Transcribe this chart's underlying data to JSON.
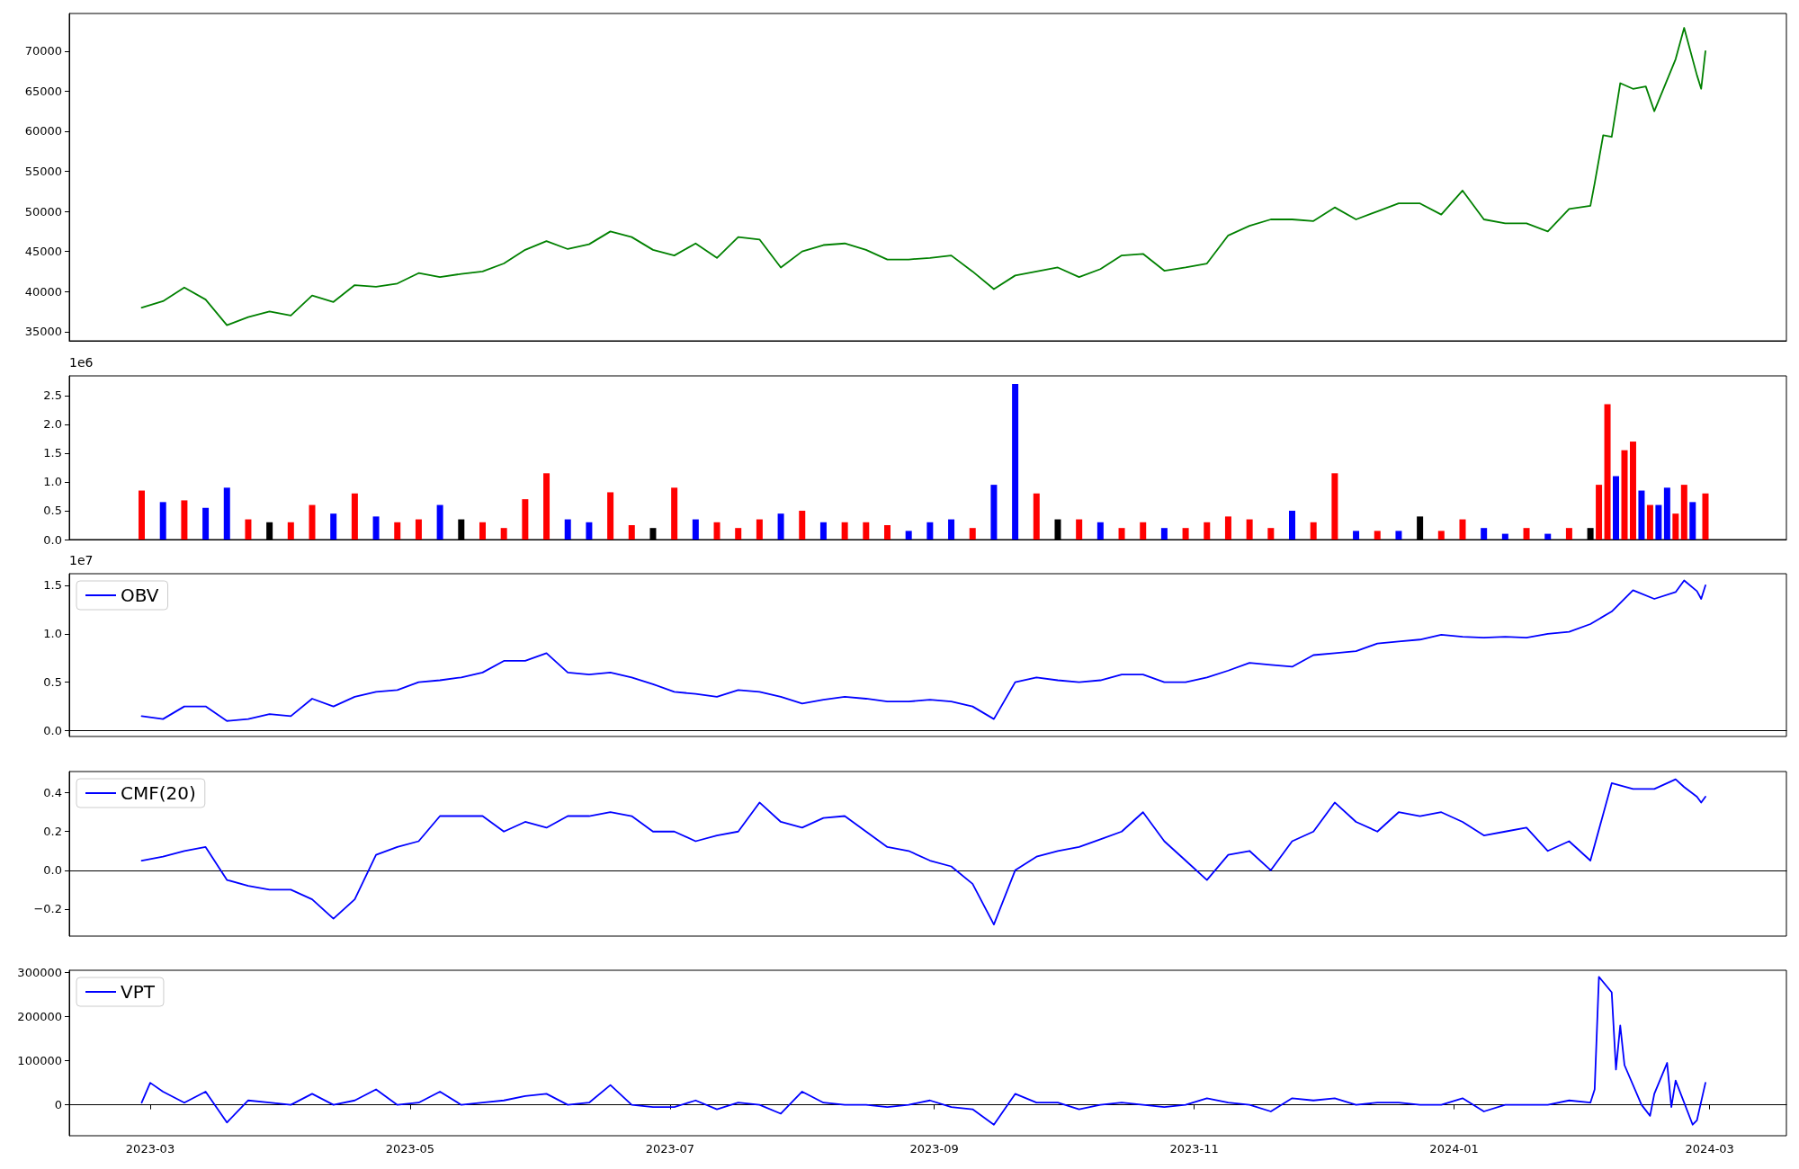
{
  "chart_data": [
    {
      "type": "line",
      "tick_labels": "y",
      "xlim": [
        "2023-02-10",
        "2024-03-19"
      ],
      "ylim": [
        33850,
        74700
      ],
      "yticks": [
        35000,
        40000,
        45000,
        50000,
        55000,
        60000,
        65000,
        70000
      ],
      "x": [
        "2023-02-27",
        "2023-03-04",
        "2023-03-09",
        "2023-03-14",
        "2023-03-19",
        "2023-03-24",
        "2023-03-29",
        "2023-04-03",
        "2023-04-08",
        "2023-04-13",
        "2023-04-18",
        "2023-04-23",
        "2023-04-28",
        "2023-05-03",
        "2023-05-08",
        "2023-05-13",
        "2023-05-18",
        "2023-05-23",
        "2023-05-28",
        "2023-06-02",
        "2023-06-07",
        "2023-06-12",
        "2023-06-17",
        "2023-06-22",
        "2023-06-27",
        "2023-07-02",
        "2023-07-07",
        "2023-07-12",
        "2023-07-17",
        "2023-07-22",
        "2023-07-27",
        "2023-08-01",
        "2023-08-06",
        "2023-08-11",
        "2023-08-16",
        "2023-08-21",
        "2023-08-26",
        "2023-08-31",
        "2023-09-05",
        "2023-09-10",
        "2023-09-15",
        "2023-09-20",
        "2023-09-25",
        "2023-09-30",
        "2023-10-05",
        "2023-10-10",
        "2023-10-15",
        "2023-10-20",
        "2023-10-25",
        "2023-10-30",
        "2023-11-04",
        "2023-11-09",
        "2023-11-14",
        "2023-11-19",
        "2023-11-24",
        "2023-11-29",
        "2023-12-04",
        "2023-12-09",
        "2023-12-14",
        "2023-12-19",
        "2023-12-24",
        "2023-12-29",
        "2024-01-03",
        "2024-01-08",
        "2024-01-13",
        "2024-01-18",
        "2024-01-23",
        "2024-01-28",
        "2024-02-02",
        "2024-02-03",
        "2024-02-05",
        "2024-02-07",
        "2024-02-09",
        "2024-02-12",
        "2024-02-15",
        "2024-02-17",
        "2024-02-22",
        "2024-02-24",
        "2024-02-27",
        "2024-02-28",
        "2024-02-29"
      ],
      "series": [
        {
          "color": "#008000",
          "values": [
            38000,
            38800,
            40500,
            39000,
            35800,
            36800,
            37500,
            37000,
            39500,
            38700,
            40800,
            40600,
            41000,
            42300,
            41800,
            42200,
            42500,
            43500,
            45200,
            46300,
            45300,
            45900,
            47500,
            46800,
            45200,
            44500,
            46000,
            44200,
            46800,
            46500,
            43000,
            45000,
            45800,
            46000,
            45200,
            44000,
            44000,
            44200,
            44500,
            42500,
            40300,
            42000,
            42500,
            43000,
            41800,
            42800,
            44500,
            44700,
            42600,
            43000,
            43500,
            47000,
            48200,
            49000,
            49000,
            48800,
            50500,
            49000,
            50000,
            51000,
            51000,
            49600,
            52600,
            49000,
            48500,
            48500,
            47500,
            50300,
            50700,
            53500,
            59500,
            59300,
            66000,
            65300,
            65600,
            62500,
            69000,
            72900,
            67000,
            65300,
            70000
          ]
        }
      ]
    },
    {
      "type": "bar",
      "tick_labels": "y",
      "annotations": [
        "1e6"
      ],
      "xlim": [
        "2023-02-10",
        "2024-03-19"
      ],
      "ylim": [
        0,
        2.84
      ],
      "yticks": [
        {
          "value": 0,
          "label": "0.0"
        },
        {
          "value": 0.5,
          "label": "0.5"
        },
        {
          "value": 1,
          "label": "1.0"
        },
        {
          "value": 1.5,
          "label": "1.5"
        },
        {
          "value": 2,
          "label": "2.0"
        },
        {
          "value": 2.5,
          "label": "2.5"
        }
      ],
      "x": [
        "2023-02-27",
        "2023-03-04",
        "2023-03-09",
        "2023-03-14",
        "2023-03-19",
        "2023-03-24",
        "2023-03-29",
        "2023-04-03",
        "2023-04-08",
        "2023-04-13",
        "2023-04-18",
        "2023-04-23",
        "2023-04-28",
        "2023-05-03",
        "2023-05-08",
        "2023-05-13",
        "2023-05-18",
        "2023-05-23",
        "2023-05-28",
        "2023-06-02",
        "2023-06-07",
        "2023-06-12",
        "2023-06-17",
        "2023-06-22",
        "2023-06-27",
        "2023-07-02",
        "2023-07-07",
        "2023-07-12",
        "2023-07-17",
        "2023-07-22",
        "2023-07-27",
        "2023-08-01",
        "2023-08-06",
        "2023-08-11",
        "2023-08-16",
        "2023-08-21",
        "2023-08-26",
        "2023-08-31",
        "2023-09-05",
        "2023-09-10",
        "2023-09-15",
        "2023-09-20",
        "2023-09-25",
        "2023-09-30",
        "2023-10-05",
        "2023-10-10",
        "2023-10-15",
        "2023-10-20",
        "2023-10-25",
        "2023-10-30",
        "2023-11-04",
        "2023-11-09",
        "2023-11-14",
        "2023-11-19",
        "2023-11-24",
        "2023-11-29",
        "2023-12-04",
        "2023-12-09",
        "2023-12-14",
        "2023-12-19",
        "2023-12-24",
        "2023-12-29",
        "2024-01-03",
        "2024-01-08",
        "2024-01-13",
        "2024-01-18",
        "2024-01-23",
        "2024-01-28",
        "2024-02-02",
        "2024-02-04",
        "2024-02-06",
        "2024-02-08",
        "2024-02-10",
        "2024-02-12",
        "2024-02-14",
        "2024-02-16",
        "2024-02-18",
        "2024-02-20",
        "2024-02-22",
        "2024-02-24",
        "2024-02-26",
        "2024-02-29"
      ],
      "values": [
        0.85,
        0.65,
        0.68,
        0.55,
        0.9,
        0.35,
        0.3,
        0.3,
        0.6,
        0.45,
        0.8,
        0.4,
        0.3,
        0.35,
        0.6,
        0.35,
        0.3,
        0.2,
        0.7,
        1.15,
        0.35,
        0.3,
        0.82,
        0.25,
        0.2,
        0.9,
        0.35,
        0.3,
        0.2,
        0.35,
        0.45,
        0.5,
        0.3,
        0.3,
        0.3,
        0.25,
        0.15,
        0.3,
        0.35,
        0.2,
        0.95,
        2.7,
        0.8,
        0.35,
        0.35,
        0.3,
        0.2,
        0.3,
        0.2,
        0.2,
        0.3,
        0.4,
        0.35,
        0.2,
        0.5,
        0.3,
        1.15,
        0.15,
        0.15,
        0.15,
        0.4,
        0.15,
        0.35,
        0.2,
        0.1,
        0.2,
        0.1,
        0.2,
        0.2,
        0.95,
        2.35,
        1.1,
        1.55,
        1.7,
        0.85,
        0.6,
        0.6,
        0.9,
        0.45,
        0.95,
        0.65,
        0.8
      ],
      "colors": [
        "#ff0000",
        "#0000ff",
        "#ff0000",
        "#0000ff",
        "#0000ff",
        "#ff0000",
        "#000000",
        "#ff0000",
        "#ff0000",
        "#0000ff",
        "#ff0000",
        "#0000ff",
        "#ff0000",
        "#ff0000",
        "#0000ff",
        "#000000",
        "#ff0000",
        "#ff0000",
        "#ff0000",
        "#ff0000",
        "#0000ff",
        "#0000ff",
        "#ff0000",
        "#ff0000",
        "#000000",
        "#ff0000",
        "#0000ff",
        "#ff0000",
        "#ff0000",
        "#ff0000",
        "#0000ff",
        "#ff0000",
        "#0000ff",
        "#ff0000",
        "#ff0000",
        "#ff0000",
        "#0000ff",
        "#0000ff",
        "#0000ff",
        "#ff0000",
        "#0000ff",
        "#0000ff",
        "#ff0000",
        "#000000",
        "#ff0000",
        "#0000ff",
        "#ff0000",
        "#ff0000",
        "#0000ff",
        "#ff0000",
        "#ff0000",
        "#ff0000",
        "#ff0000",
        "#ff0000",
        "#0000ff",
        "#ff0000",
        "#ff0000",
        "#0000ff",
        "#ff0000",
        "#0000ff",
        "#000000",
        "#ff0000",
        "#ff0000",
        "#0000ff",
        "#0000ff",
        "#ff0000",
        "#0000ff",
        "#ff0000",
        "#000000",
        "#ff0000",
        "#ff0000",
        "#0000ff",
        "#ff0000",
        "#ff0000",
        "#0000ff",
        "#ff0000",
        "#0000ff",
        "#0000ff",
        "#ff0000",
        "#ff0000",
        "#0000ff",
        "#ff0000"
      ]
    },
    {
      "type": "line",
      "tick_labels": "y",
      "legend": "top left",
      "annotations": [
        "1e7"
      ],
      "xlim": [
        "2023-02-10",
        "2024-03-19"
      ],
      "ylim": [
        -0.06,
        1.62
      ],
      "yticks": [
        {
          "value": 0,
          "label": "0.0"
        },
        {
          "value": 0.5,
          "label": "0.5"
        },
        {
          "value": 1,
          "label": "1.0"
        },
        {
          "value": 1.5,
          "label": "1.5"
        }
      ],
      "x": [
        "2023-02-27",
        "2023-03-04",
        "2023-03-09",
        "2023-03-14",
        "2023-03-19",
        "2023-03-24",
        "2023-03-29",
        "2023-04-03",
        "2023-04-08",
        "2023-04-13",
        "2023-04-18",
        "2023-04-23",
        "2023-04-28",
        "2023-05-03",
        "2023-05-08",
        "2023-05-13",
        "2023-05-18",
        "2023-05-23",
        "2023-05-28",
        "2023-06-02",
        "2023-06-07",
        "2023-06-12",
        "2023-06-17",
        "2023-06-22",
        "2023-06-27",
        "2023-07-02",
        "2023-07-07",
        "2023-07-12",
        "2023-07-17",
        "2023-07-22",
        "2023-07-27",
        "2023-08-01",
        "2023-08-06",
        "2023-08-11",
        "2023-08-16",
        "2023-08-21",
        "2023-08-26",
        "2023-08-31",
        "2023-09-05",
        "2023-09-10",
        "2023-09-15",
        "2023-09-20",
        "2023-09-25",
        "2023-09-30",
        "2023-10-05",
        "2023-10-10",
        "2023-10-15",
        "2023-10-20",
        "2023-10-25",
        "2023-10-30",
        "2023-11-04",
        "2023-11-09",
        "2023-11-14",
        "2023-11-19",
        "2023-11-24",
        "2023-11-29",
        "2023-12-04",
        "2023-12-09",
        "2023-12-14",
        "2023-12-19",
        "2023-12-24",
        "2023-12-29",
        "2024-01-03",
        "2024-01-08",
        "2024-01-13",
        "2024-01-18",
        "2024-01-23",
        "2024-01-28",
        "2024-02-02",
        "2024-02-07",
        "2024-02-12",
        "2024-02-17",
        "2024-02-22",
        "2024-02-24",
        "2024-02-27",
        "2024-02-28",
        "2024-02-29"
      ],
      "series": [
        {
          "name": "OBV",
          "color": "#0000ff",
          "values": [
            0.15,
            0.12,
            0.25,
            0.25,
            0.1,
            0.12,
            0.17,
            0.15,
            0.33,
            0.25,
            0.35,
            0.4,
            0.42,
            0.5,
            0.52,
            0.55,
            0.6,
            0.72,
            0.72,
            0.8,
            0.6,
            0.58,
            0.6,
            0.55,
            0.48,
            0.4,
            0.38,
            0.35,
            0.42,
            0.4,
            0.35,
            0.28,
            0.32,
            0.35,
            0.33,
            0.3,
            0.3,
            0.32,
            0.3,
            0.25,
            0.12,
            0.5,
            0.55,
            0.52,
            0.5,
            0.52,
            0.58,
            0.58,
            0.5,
            0.5,
            0.55,
            0.62,
            0.7,
            0.68,
            0.66,
            0.78,
            0.8,
            0.82,
            0.9,
            0.92,
            0.94,
            0.99,
            0.97,
            0.96,
            0.97,
            0.96,
            1.0,
            1.02,
            1.1,
            1.23,
            1.45,
            1.36,
            1.43,
            1.55,
            1.44,
            1.36,
            1.5
          ]
        }
      ]
    },
    {
      "type": "line",
      "tick_labels": "y",
      "legend": "top left",
      "xlim": [
        "2023-02-10",
        "2024-03-19"
      ],
      "ylim": [
        -0.34,
        0.51
      ],
      "yticks": [
        {
          "value": -0.2,
          "label": "−0.2"
        },
        {
          "value": 0,
          "label": "0.0"
        },
        {
          "value": 0.2,
          "label": "0.2"
        },
        {
          "value": 0.4,
          "label": "0.4"
        }
      ],
      "x": [
        "2023-02-27",
        "2023-03-04",
        "2023-03-09",
        "2023-03-14",
        "2023-03-19",
        "2023-03-24",
        "2023-03-29",
        "2023-04-03",
        "2023-04-08",
        "2023-04-13",
        "2023-04-18",
        "2023-04-23",
        "2023-04-28",
        "2023-05-03",
        "2023-05-08",
        "2023-05-13",
        "2023-05-18",
        "2023-05-23",
        "2023-05-28",
        "2023-06-02",
        "2023-06-07",
        "2023-06-12",
        "2023-06-17",
        "2023-06-22",
        "2023-06-27",
        "2023-07-02",
        "2023-07-07",
        "2023-07-12",
        "2023-07-17",
        "2023-07-22",
        "2023-07-27",
        "2023-08-01",
        "2023-08-06",
        "2023-08-11",
        "2023-08-16",
        "2023-08-21",
        "2023-08-26",
        "2023-08-31",
        "2023-09-05",
        "2023-09-10",
        "2023-09-15",
        "2023-09-20",
        "2023-09-25",
        "2023-09-30",
        "2023-10-05",
        "2023-10-10",
        "2023-10-15",
        "2023-10-20",
        "2023-10-25",
        "2023-10-30",
        "2023-11-04",
        "2023-11-09",
        "2023-11-14",
        "2023-11-19",
        "2023-11-24",
        "2023-11-29",
        "2023-12-04",
        "2023-12-09",
        "2023-12-14",
        "2023-12-19",
        "2023-12-24",
        "2023-12-29",
        "2024-01-03",
        "2024-01-08",
        "2024-01-13",
        "2024-01-18",
        "2024-01-23",
        "2024-01-28",
        "2024-02-02",
        "2024-02-07",
        "2024-02-12",
        "2024-02-17",
        "2024-02-22",
        "2024-02-24",
        "2024-02-27",
        "2024-02-28",
        "2024-02-29"
      ],
      "series": [
        {
          "name": "CMF(20)",
          "color": "#0000ff",
          "values": [
            0.05,
            0.07,
            0.1,
            0.12,
            -0.05,
            -0.08,
            -0.1,
            -0.1,
            -0.15,
            -0.25,
            -0.15,
            0.08,
            0.12,
            0.15,
            0.28,
            0.28,
            0.28,
            0.2,
            0.25,
            0.22,
            0.28,
            0.28,
            0.3,
            0.28,
            0.2,
            0.2,
            0.15,
            0.18,
            0.2,
            0.35,
            0.25,
            0.22,
            0.27,
            0.28,
            0.2,
            0.12,
            0.1,
            0.05,
            0.02,
            -0.07,
            -0.28,
            0.0,
            0.07,
            0.1,
            0.12,
            0.16,
            0.2,
            0.3,
            0.15,
            0.05,
            -0.05,
            0.08,
            0.1,
            0.0,
            0.15,
            0.2,
            0.35,
            0.25,
            0.2,
            0.3,
            0.28,
            0.3,
            0.25,
            0.18,
            0.2,
            0.22,
            0.1,
            0.15,
            0.05,
            0.45,
            0.42,
            0.42,
            0.47,
            0.43,
            0.38,
            0.35,
            0.38
          ]
        }
      ]
    },
    {
      "type": "line",
      "legend": "top left",
      "xlim": [
        "2023-02-10",
        "2024-03-19"
      ],
      "xticks": [
        {
          "value": "2023-03-01",
          "label": "2023-03"
        },
        {
          "value": "2023-05-01",
          "label": "2023-05"
        },
        {
          "value": "2023-07-01",
          "label": "2023-07"
        },
        {
          "value": "2023-09-01",
          "label": "2023-09"
        },
        {
          "value": "2023-11-01",
          "label": "2023-11"
        },
        {
          "value": "2024-01-01",
          "label": "2024-01"
        },
        {
          "value": "2024-03-01",
          "label": "2024-03"
        }
      ],
      "ylim": [
        -70000,
        305000
      ],
      "yticks": [
        0,
        100000,
        200000,
        300000
      ],
      "x": [
        "2023-02-27",
        "2023-03-01",
        "2023-03-04",
        "2023-03-09",
        "2023-03-14",
        "2023-03-19",
        "2023-03-24",
        "2023-03-29",
        "2023-04-03",
        "2023-04-08",
        "2023-04-13",
        "2023-04-18",
        "2023-04-23",
        "2023-04-28",
        "2023-05-03",
        "2023-05-08",
        "2023-05-13",
        "2023-05-18",
        "2023-05-23",
        "2023-05-28",
        "2023-06-02",
        "2023-06-07",
        "2023-06-12",
        "2023-06-17",
        "2023-06-22",
        "2023-06-27",
        "2023-07-02",
        "2023-07-07",
        "2023-07-12",
        "2023-07-17",
        "2023-07-22",
        "2023-07-27",
        "2023-08-01",
        "2023-08-06",
        "2023-08-11",
        "2023-08-16",
        "2023-08-21",
        "2023-08-26",
        "2023-08-31",
        "2023-09-05",
        "2023-09-10",
        "2023-09-15",
        "2023-09-20",
        "2023-09-25",
        "2023-09-30",
        "2023-10-05",
        "2023-10-10",
        "2023-10-15",
        "2023-10-20",
        "2023-10-25",
        "2023-10-30",
        "2023-11-04",
        "2023-11-09",
        "2023-11-14",
        "2023-11-19",
        "2023-11-24",
        "2023-11-29",
        "2023-12-04",
        "2023-12-09",
        "2023-12-14",
        "2023-12-19",
        "2023-12-24",
        "2023-12-29",
        "2024-01-03",
        "2024-01-08",
        "2024-01-13",
        "2024-01-18",
        "2024-01-23",
        "2024-01-28",
        "2024-02-02",
        "2024-02-03",
        "2024-02-04",
        "2024-02-07",
        "2024-02-08",
        "2024-02-09",
        "2024-02-10",
        "2024-02-14",
        "2024-02-16",
        "2024-02-17",
        "2024-02-20",
        "2024-02-21",
        "2024-02-22",
        "2024-02-26",
        "2024-02-27",
        "2024-02-29"
      ],
      "series": [
        {
          "name": "VPT",
          "color": "#0000ff",
          "values": [
            5000,
            50000,
            30000,
            5000,
            30000,
            -40000,
            10000,
            5000,
            0,
            25000,
            0,
            10000,
            35000,
            0,
            5000,
            30000,
            0,
            5000,
            10000,
            20000,
            25000,
            0,
            5000,
            45000,
            0,
            -5000,
            -5000,
            10000,
            -10000,
            5000,
            0,
            -20000,
            30000,
            5000,
            0,
            0,
            -5000,
            0,
            10000,
            -5000,
            -10000,
            -45000,
            25000,
            5000,
            5000,
            -10000,
            0,
            5000,
            0,
            -5000,
            0,
            15000,
            5000,
            0,
            -15000,
            15000,
            10000,
            15000,
            0,
            5000,
            5000,
            0,
            0,
            15000,
            -15000,
            0,
            0,
            0,
            10000,
            5000,
            35000,
            290000,
            255000,
            80000,
            180000,
            90000,
            0,
            -25000,
            25000,
            95000,
            -5000,
            55000,
            -45000,
            -35000,
            50000
          ]
        }
      ]
    }
  ]
}
